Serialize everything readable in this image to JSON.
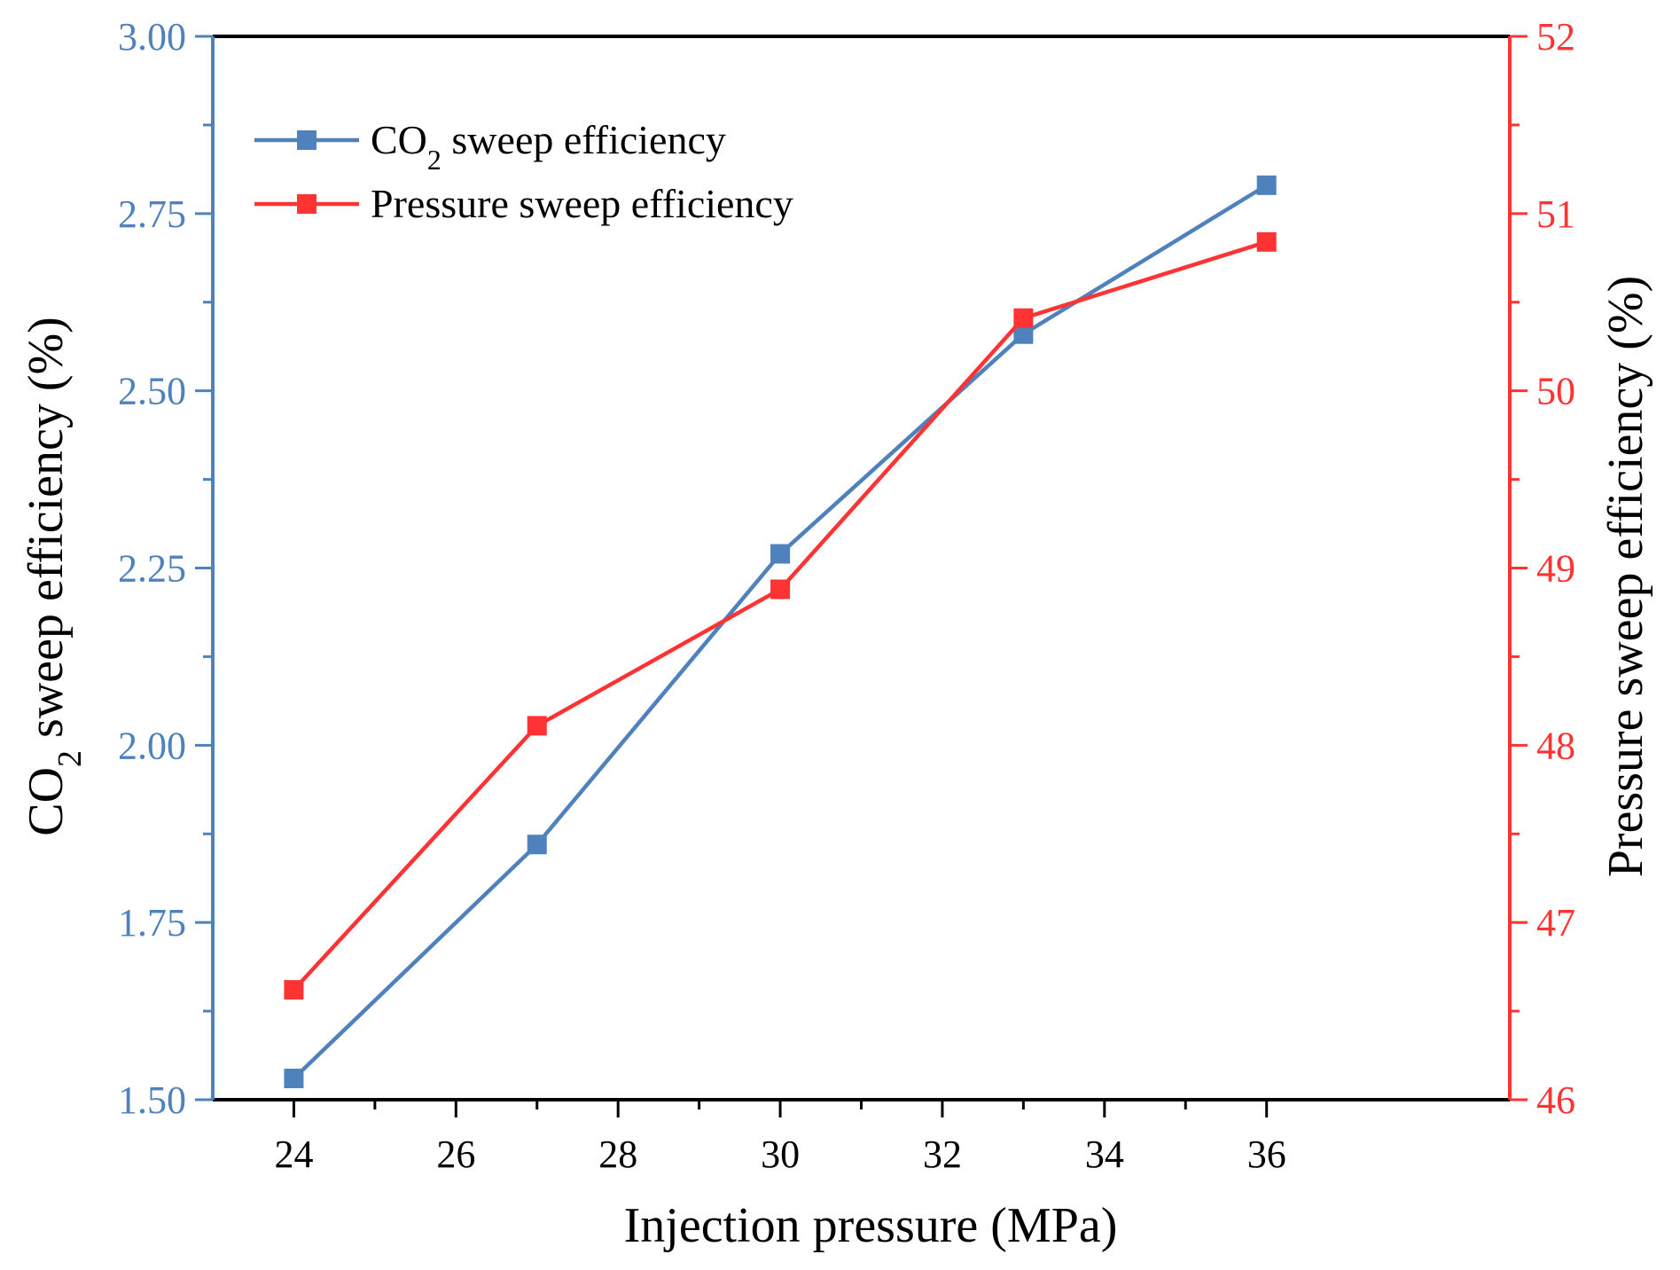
{
  "chart_data": {
    "type": "line",
    "x_axis": {
      "label": "Injection pressure (MPa)",
      "range": [
        23,
        39
      ],
      "ticks": [
        24,
        26,
        28,
        30,
        32,
        34,
        36
      ],
      "tick_labels": [
        "24",
        "26",
        "28",
        "30",
        "32",
        "34",
        "36"
      ]
    },
    "y_left": {
      "label_main": "CO",
      "label_sub": "2",
      "label_rest": " sweep efficiency (%)",
      "range": [
        1.5,
        3.0
      ],
      "ticks": [
        1.5,
        1.75,
        2.0,
        2.25,
        2.5,
        2.75,
        3.0
      ],
      "tick_labels": [
        "1.50",
        "1.75",
        "2.00",
        "2.25",
        "2.50",
        "2.75",
        "3.00"
      ],
      "color": "#4f81bd"
    },
    "y_right": {
      "label": "Pressure sweep efficiency (%)",
      "range": [
        46,
        52
      ],
      "ticks": [
        46,
        47,
        48,
        49,
        50,
        51,
        52
      ],
      "tick_labels": [
        "46",
        "47",
        "48",
        "49",
        "50",
        "51",
        "52"
      ],
      "color": "#ff3333"
    },
    "series": [
      {
        "name": "CO2 sweep efficiency",
        "legend_main": "CO",
        "legend_sub": "2",
        "legend_rest": " sweep efficiency",
        "axis": "left",
        "color": "#4f81bd",
        "x": [
          24,
          27,
          30,
          33,
          36
        ],
        "y": [
          1.53,
          1.86,
          2.27,
          2.58,
          2.79
        ]
      },
      {
        "name": "Pressure sweep efficiency",
        "legend_main": "Pressure sweep efficiency",
        "legend_sub": "",
        "legend_rest": "",
        "axis": "right",
        "color": "#ff3333",
        "x": [
          24,
          27,
          30,
          33,
          36
        ],
        "y": [
          46.62,
          48.11,
          48.88,
          50.41,
          50.84
        ]
      }
    ],
    "legend_position": "top-left"
  }
}
